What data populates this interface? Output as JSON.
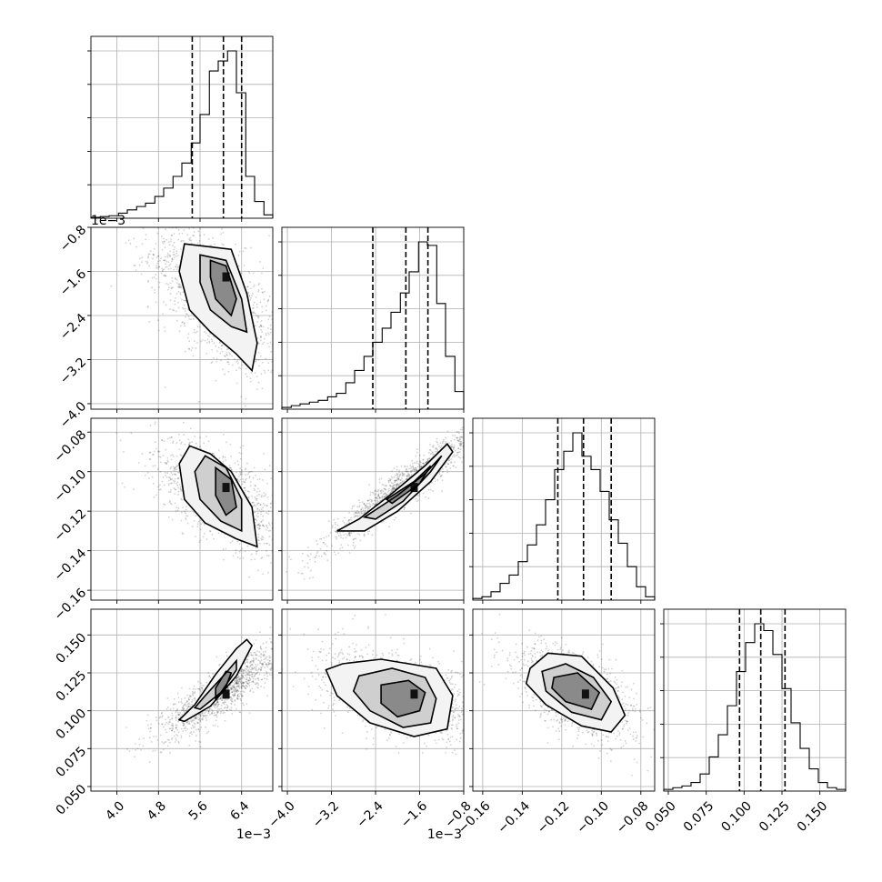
{
  "chart_data": {
    "type": "corner",
    "grid": true,
    "parameters": [
      {
        "index": 0,
        "range": [
          0.0035,
          0.007
        ],
        "ticks": [
          0.004,
          0.0048,
          0.0056,
          0.0064
        ],
        "tick_labels": [
          "4.0",
          "4.8",
          "5.6",
          "6.4"
        ],
        "offset_label": "1e−3",
        "center": 0.0061,
        "quantiles": [
          0.00545,
          0.00605,
          0.0064
        ]
      },
      {
        "index": 1,
        "range": [
          -0.0041,
          -0.0008
        ],
        "ticks": [
          -0.004,
          -0.0032,
          -0.0024,
          -0.0016,
          -0.0008
        ],
        "tick_labels": [
          "−4.0",
          "−3.2",
          "−2.4",
          "−1.6",
          "−0.8"
        ],
        "offset_label": "1e−3",
        "center": -0.0017,
        "quantiles": [
          -0.00245,
          -0.00185,
          -0.00145
        ]
      },
      {
        "index": 2,
        "range": [
          -0.165,
          -0.073
        ],
        "ticks": [
          -0.16,
          -0.14,
          -0.12,
          -0.1,
          -0.08
        ],
        "tick_labels": [
          "−0.16",
          "−0.14",
          "−0.12",
          "−0.10",
          "−0.08"
        ],
        "offset_label": "",
        "center": -0.108,
        "quantiles": [
          -0.122,
          -0.109,
          -0.095
        ]
      },
      {
        "index": 3,
        "range": [
          0.047,
          0.167
        ],
        "ticks": [
          0.05,
          0.075,
          0.1,
          0.125,
          0.15
        ],
        "tick_labels": [
          "0.050",
          "0.075",
          "0.100",
          "0.125",
          "0.150"
        ],
        "offset_label": "",
        "center": 0.111,
        "quantiles": [
          0.097,
          0.111,
          0.127
        ]
      }
    ],
    "histograms": [
      {
        "param": 0,
        "bin_edges": [
          0.0035,
          0.00368,
          0.00385,
          0.00403,
          0.0042,
          0.00438,
          0.00455,
          0.00473,
          0.0049,
          0.00508,
          0.00525,
          0.00543,
          0.0056,
          0.00578,
          0.00595,
          0.00613,
          0.0063,
          0.00648,
          0.00665,
          0.00683,
          0.007
        ],
        "counts": [
          0.005,
          0.01,
          0.015,
          0.03,
          0.05,
          0.07,
          0.09,
          0.13,
          0.18,
          0.25,
          0.33,
          0.45,
          0.62,
          0.88,
          0.94,
          1.0,
          0.75,
          0.25,
          0.1,
          0.02
        ]
      },
      {
        "param": 1,
        "bin_edges": [
          -0.0041,
          -0.00393,
          -0.00377,
          -0.0036,
          -0.00344,
          -0.00327,
          -0.00311,
          -0.00294,
          -0.00278,
          -0.00261,
          -0.00245,
          -0.00228,
          -0.00212,
          -0.00195,
          -0.00179,
          -0.00162,
          -0.00146,
          -0.00129,
          -0.00113,
          -0.00096,
          -0.0008
        ],
        "counts": [
          0.01,
          0.02,
          0.03,
          0.04,
          0.05,
          0.07,
          0.09,
          0.15,
          0.22,
          0.3,
          0.38,
          0.46,
          0.55,
          0.66,
          0.78,
          0.95,
          0.93,
          0.6,
          0.3,
          0.1
        ]
      },
      {
        "param": 2,
        "bin_edges": [
          -0.165,
          -0.1604,
          -0.1558,
          -0.1512,
          -0.1466,
          -0.142,
          -0.1374,
          -0.1328,
          -0.1282,
          -0.1236,
          -0.119,
          -0.1144,
          -0.1098,
          -0.1052,
          -0.1006,
          -0.096,
          -0.0914,
          -0.0868,
          -0.0822,
          -0.0776,
          -0.073
        ],
        "counts": [
          0.01,
          0.02,
          0.05,
          0.1,
          0.15,
          0.23,
          0.33,
          0.45,
          0.6,
          0.78,
          0.89,
          1.0,
          0.86,
          0.78,
          0.65,
          0.48,
          0.34,
          0.2,
          0.08,
          0.02
        ]
      },
      {
        "param": 3,
        "bin_edges": [
          0.047,
          0.053,
          0.059,
          0.065,
          0.071,
          0.077,
          0.083,
          0.089,
          0.095,
          0.101,
          0.107,
          0.113,
          0.119,
          0.125,
          0.131,
          0.137,
          0.143,
          0.149,
          0.155,
          0.161,
          0.167
        ],
        "counts": [
          0.01,
          0.02,
          0.03,
          0.05,
          0.1,
          0.2,
          0.33,
          0.5,
          0.7,
          0.87,
          0.98,
          0.94,
          0.8,
          0.6,
          0.4,
          0.25,
          0.13,
          0.05,
          0.02,
          0.01
        ]
      }
    ],
    "pairs": [
      {
        "x": 0,
        "y": 1,
        "mean": [
          0.0059,
          -0.0021
        ],
        "sd": [
          0.0005,
          0.00055
        ],
        "rho": -0.62,
        "contours": [
          [
            [
              0.0053,
              -0.0011
            ],
            [
              0.0062,
              -0.0012
            ],
            [
              0.0065,
              -0.002
            ],
            [
              0.0067,
              -0.0029
            ],
            [
              0.0066,
              -0.0034
            ],
            [
              0.0063,
              -0.0031
            ],
            [
              0.0058,
              -0.0027
            ],
            [
              0.0054,
              -0.0023
            ],
            [
              0.0052,
              -0.0016
            ]
          ],
          [
            [
              0.0056,
              -0.0013
            ],
            [
              0.0061,
              -0.0014
            ],
            [
              0.0064,
              -0.0021
            ],
            [
              0.0065,
              -0.0027
            ],
            [
              0.0062,
              -0.0026
            ],
            [
              0.0058,
              -0.0023
            ],
            [
              0.0056,
              -0.0018
            ]
          ],
          [
            [
              0.0058,
              -0.0014
            ],
            [
              0.0061,
              -0.0015
            ],
            [
              0.0063,
              -0.0021
            ],
            [
              0.0062,
              -0.0024
            ],
            [
              0.0059,
              -0.0021
            ],
            [
              0.0058,
              -0.0017
            ]
          ]
        ]
      },
      {
        "x": 0,
        "y": 2,
        "mean": [
          0.006,
          -0.112
        ],
        "sd": [
          0.0005,
          0.011
        ],
        "rho": -0.6,
        "contours": [
          [
            [
              0.0054,
              -0.087
            ],
            [
              0.0058,
              -0.091
            ],
            [
              0.0062,
              -0.1
            ],
            [
              0.0066,
              -0.118
            ],
            [
              0.0067,
              -0.138
            ],
            [
              0.0063,
              -0.134
            ],
            [
              0.0057,
              -0.126
            ],
            [
              0.0053,
              -0.114
            ],
            [
              0.0052,
              -0.096
            ]
          ],
          [
            [
              0.0057,
              -0.092
            ],
            [
              0.0061,
              -0.098
            ],
            [
              0.0064,
              -0.114
            ],
            [
              0.0064,
              -0.13
            ],
            [
              0.006,
              -0.125
            ],
            [
              0.0056,
              -0.114
            ],
            [
              0.0055,
              -0.1
            ]
          ],
          [
            [
              0.0059,
              -0.098
            ],
            [
              0.0062,
              -0.104
            ],
            [
              0.0063,
              -0.118
            ],
            [
              0.0061,
              -0.122
            ],
            [
              0.0059,
              -0.112
            ]
          ]
        ]
      },
      {
        "x": 1,
        "y": 2,
        "mean": [
          -0.0019,
          -0.108
        ],
        "sd": [
          0.00055,
          0.012
        ],
        "rho": 0.95,
        "contours": [
          [
            [
              -0.0031,
              -0.13
            ],
            [
              -0.0027,
              -0.124
            ],
            [
              -0.0021,
              -0.111
            ],
            [
              -0.0015,
              -0.097
            ],
            [
              -0.0011,
              -0.086
            ],
            [
              -0.001,
              -0.09
            ],
            [
              -0.0014,
              -0.105
            ],
            [
              -0.002,
              -0.12
            ],
            [
              -0.0026,
              -0.13
            ]
          ],
          [
            [
              -0.0026,
              -0.123
            ],
            [
              -0.002,
              -0.112
            ],
            [
              -0.0015,
              -0.101
            ],
            [
              -0.0012,
              -0.092
            ],
            [
              -0.0014,
              -0.1
            ],
            [
              -0.0019,
              -0.115
            ],
            [
              -0.0024,
              -0.124
            ]
          ],
          [
            [
              -0.0022,
              -0.114
            ],
            [
              -0.0017,
              -0.105
            ],
            [
              -0.0014,
              -0.097
            ],
            [
              -0.0016,
              -0.106
            ],
            [
              -0.0021,
              -0.116
            ]
          ]
        ]
      },
      {
        "x": 0,
        "y": 3,
        "mean": [
          0.006,
          0.113
        ],
        "sd": [
          0.00045,
          0.012
        ],
        "rho": 0.85,
        "contours": [
          [
            [
              0.0053,
              0.093
            ],
            [
              0.0058,
              0.103
            ],
            [
              0.0063,
              0.123
            ],
            [
              0.0066,
              0.143
            ],
            [
              0.0065,
              0.147
            ],
            [
              0.0063,
              0.141
            ],
            [
              0.0059,
              0.124
            ],
            [
              0.0055,
              0.104
            ],
            [
              0.0052,
              0.094
            ]
          ],
          [
            [
              0.0056,
              0.101
            ],
            [
              0.006,
              0.112
            ],
            [
              0.0063,
              0.127
            ],
            [
              0.0063,
              0.133
            ],
            [
              0.0061,
              0.125
            ],
            [
              0.0057,
              0.11
            ],
            [
              0.0055,
              0.102
            ]
          ],
          [
            [
              0.0059,
              0.108
            ],
            [
              0.0061,
              0.116
            ],
            [
              0.0062,
              0.125
            ],
            [
              0.0061,
              0.126
            ],
            [
              0.0059,
              0.115
            ]
          ]
        ]
      },
      {
        "x": 1,
        "y": 3,
        "mean": [
          -0.0019,
          0.11
        ],
        "sd": [
          0.0006,
          0.012
        ],
        "rho": -0.45,
        "contours": [
          [
            [
              -0.0033,
              0.127
            ],
            [
              -0.003,
              0.131
            ],
            [
              -0.0023,
              0.134
            ],
            [
              -0.0013,
              0.128
            ],
            [
              -0.001,
              0.11
            ],
            [
              -0.0011,
              0.088
            ],
            [
              -0.0017,
              0.083
            ],
            [
              -0.0025,
              0.092
            ],
            [
              -0.0031,
              0.11
            ]
          ],
          [
            [
              -0.0027,
              0.123
            ],
            [
              -0.0021,
              0.128
            ],
            [
              -0.0015,
              0.122
            ],
            [
              -0.0013,
              0.108
            ],
            [
              -0.0014,
              0.092
            ],
            [
              -0.0019,
              0.089
            ],
            [
              -0.0025,
              0.1
            ],
            [
              -0.0028,
              0.113
            ]
          ],
          [
            [
              -0.0023,
              0.117
            ],
            [
              -0.0018,
              0.12
            ],
            [
              -0.0015,
              0.112
            ],
            [
              -0.0016,
              0.1
            ],
            [
              -0.002,
              0.096
            ],
            [
              -0.0023,
              0.105
            ]
          ]
        ]
      },
      {
        "x": 2,
        "y": 3,
        "mean": [
          -0.113,
          0.112
        ],
        "sd": [
          0.012,
          0.012
        ],
        "rho": -0.55,
        "contours": [
          [
            [
              -0.136,
              0.128
            ],
            [
              -0.127,
              0.138
            ],
            [
              -0.11,
              0.136
            ],
            [
              -0.094,
              0.115
            ],
            [
              -0.088,
              0.097
            ],
            [
              -0.095,
              0.086
            ],
            [
              -0.11,
              0.09
            ],
            [
              -0.128,
              0.104
            ],
            [
              -0.138,
              0.118
            ]
          ],
          [
            [
              -0.13,
              0.126
            ],
            [
              -0.118,
              0.131
            ],
            [
              -0.104,
              0.122
            ],
            [
              -0.095,
              0.106
            ],
            [
              -0.1,
              0.094
            ],
            [
              -0.115,
              0.099
            ],
            [
              -0.128,
              0.113
            ]
          ],
          [
            [
              -0.124,
              0.122
            ],
            [
              -0.112,
              0.125
            ],
            [
              -0.101,
              0.112
            ],
            [
              -0.105,
              0.101
            ],
            [
              -0.118,
              0.106
            ],
            [
              -0.125,
              0.115
            ]
          ]
        ]
      }
    ]
  }
}
